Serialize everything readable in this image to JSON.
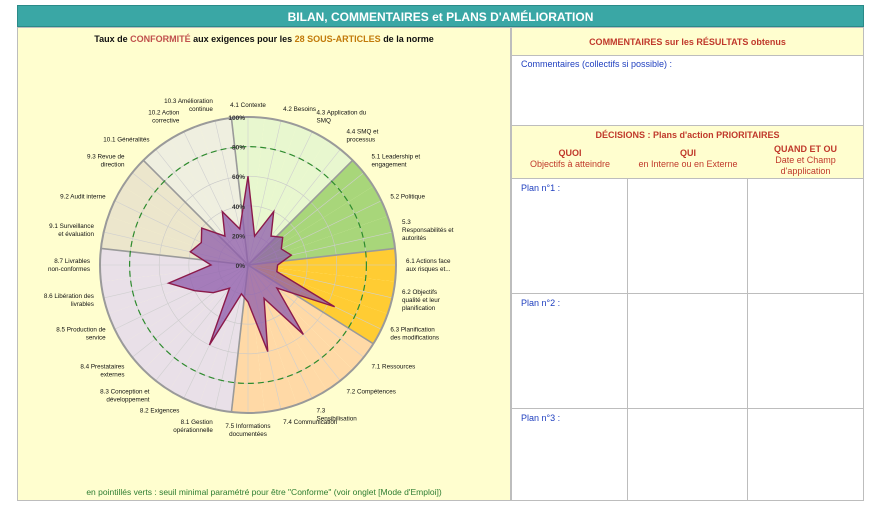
{
  "banner": "BILAN, COMMENTAIRES et PLANS D'AMÉLIORATION",
  "chart_title": {
    "part1": "Taux de ",
    "hl1": "CONFORMITÉ",
    "part2": " aux exigences pour les ",
    "hl2": "28 SOUS-ARTICLES",
    "part3": " de la norme"
  },
  "footnote": "en pointillés verts : seuil minimal paramétré pour être \"Conforme\" (voir onglet [Mode d'Emploi])",
  "right": {
    "comments_title": "COMMENTAIRES sur les RÉSULTATS obtenus",
    "comments_label": "Commentaires (collectifs si possible) :",
    "decisions_title": "DÉCISIONS : Plans d'action PRIORITAIRES",
    "col1_a": "QUOI",
    "col1_b": "Objectifs à atteindre",
    "col2_a": "QUI",
    "col2_b": "en Interne ou en Externe",
    "col3_a": "QUAND ET OU",
    "col3_b": "Date et Champ",
    "col3_c": "d'application",
    "plans": [
      "Plan n°1 :",
      "Plan n°2 :",
      "Plan n°3 :"
    ]
  },
  "chart_data": {
    "type": "radar",
    "axis_ticks": [
      "0%",
      "20%",
      "40%",
      "60%",
      "80%",
      "100%"
    ],
    "rmax": 100,
    "threshold": 80,
    "categories": [
      "4.1 Contexte",
      "4.2 Besoins",
      "4.3 Application du SMQ",
      "4.4 SMQ et processus",
      "5.1 Leadership et engagement",
      "5.2 Politique",
      "5.3 Responsabilités et autorités",
      "6.1 Actions face aux risques et...",
      "6.2 Objectifs qualité et leur planification",
      "6.3 Planification des modifications",
      "7.1 Ressources",
      "7.2 Compétences",
      "7.3 Sensibilisation",
      "7.4 Communication",
      "7.5 Informations documentées",
      "8.1 Gestion opérationnelle",
      "8.2 Exigences",
      "8.3 Conception et développement",
      "8.4 Prestataires externes",
      "8.5 Production de service",
      "8.6 Libération des livrables",
      "8.7 Livrables non-conformes",
      "9.1 Surveillance et évaluation",
      "9.2 Audit interne",
      "9.3 Revue de direction",
      "10.1 Généralités",
      "10.2 Action corrective",
      "10.3 Amélioration continue"
    ],
    "values": [
      60,
      20,
      40,
      25,
      30,
      25,
      30,
      20,
      20,
      65,
      25,
      60,
      25,
      60,
      25,
      20,
      60,
      20,
      30,
      40,
      55,
      25,
      40,
      35,
      40,
      25,
      40,
      25
    ],
    "group_colors": [
      "#e8f7cf",
      "#e8f7cf",
      "#e8f7cf",
      "#e8f7cf",
      "#a8d67a",
      "#a8d67a",
      "#a8d67a",
      "#ffcc33",
      "#ffcc33",
      "#ffcc33",
      "#ffd9a6",
      "#ffd9a6",
      "#ffd9a6",
      "#ffd9a6",
      "#ffd9a6",
      "#e9e0e8",
      "#e9e0e8",
      "#e9e0e8",
      "#e9e0e8",
      "#e9e0e8",
      "#e9e0e8",
      "#e9e0e8",
      "#ece6cc",
      "#ece6cc",
      "#ece6cc",
      "#efefe0",
      "#efefe0",
      "#efefe0"
    ],
    "fill_color": "#8e5bab",
    "line_color": "#8b1a4a",
    "threshold_color": "#2e8b2e"
  }
}
